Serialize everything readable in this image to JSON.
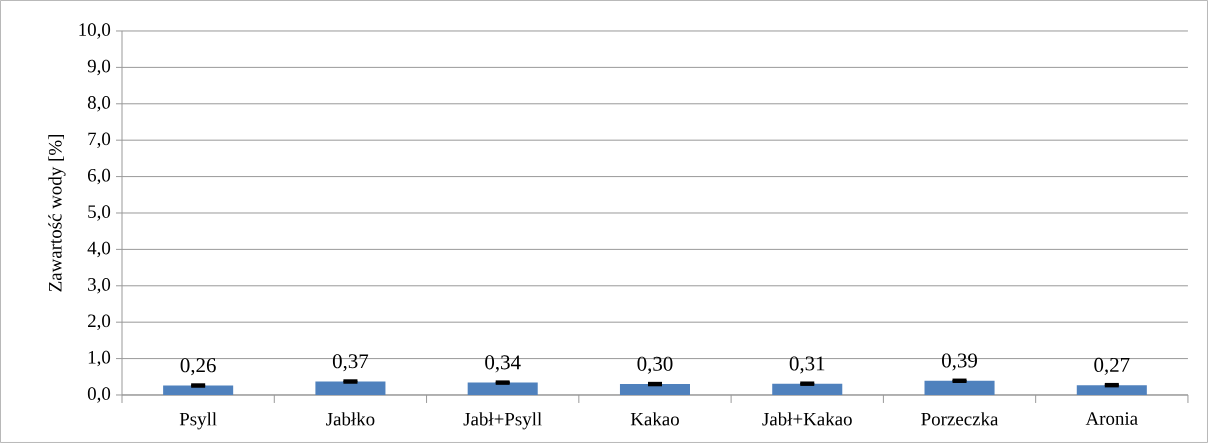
{
  "chart_data": {
    "type": "bar",
    "ylabel": "Zawartość wody [%]",
    "categories": [
      "Psyll",
      "Jabłko",
      "Jabł+Psyll",
      "Kakao",
      "Jabł+Kakao",
      "Porzeczka",
      "Aronia"
    ],
    "values": [
      0.26,
      0.37,
      0.34,
      0.3,
      0.31,
      0.39,
      0.27
    ],
    "errors": [
      0.02,
      0.02,
      0.02,
      0.02,
      0.02,
      0.02,
      0.02
    ],
    "value_labels": [
      "0,26",
      "0,37",
      "0,34",
      "0,30",
      "0,31",
      "0,39",
      "0,27"
    ],
    "color": "#4f81bd",
    "ylim": [
      0,
      10
    ],
    "yticks": [
      {
        "value": 0,
        "label": "0,0"
      },
      {
        "value": 1,
        "label": "1,0"
      },
      {
        "value": 2,
        "label": "2,0"
      },
      {
        "value": 3,
        "label": "3,0"
      },
      {
        "value": 4,
        "label": "4,0"
      },
      {
        "value": 5,
        "label": "5,0"
      },
      {
        "value": 6,
        "label": "6,0"
      },
      {
        "value": 7,
        "label": "7,0"
      },
      {
        "value": 8,
        "label": "8,0"
      },
      {
        "value": 9,
        "label": "9,0"
      },
      {
        "value": 10,
        "label": "10,0"
      }
    ],
    "grid": "y"
  }
}
